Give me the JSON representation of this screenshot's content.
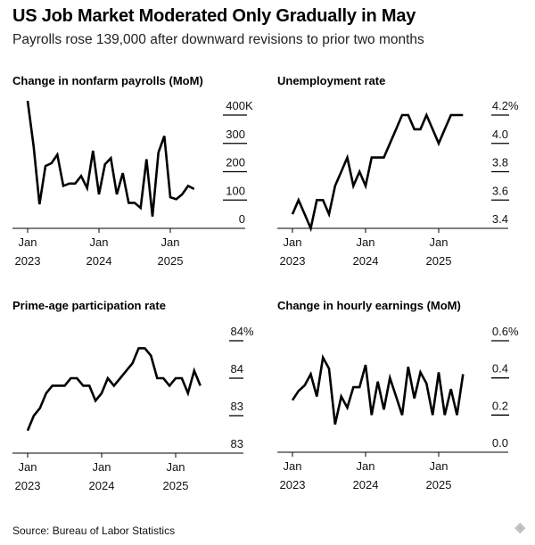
{
  "header": {
    "title": "US Job Market Moderated Only Gradually in May",
    "subtitle": "Payrolls rose 139,000 after downward revisions to prior two months"
  },
  "footer": {
    "source": "Source: Bureau of Labor Statistics",
    "watermark": "金色财经"
  },
  "chart_data": [
    {
      "type": "line",
      "title": "Change in nonfarm payrolls (MoM)",
      "x_start": "Jan 2023",
      "x_end": "May 2025",
      "x_ticks": [
        {
          "month": "Jan",
          "year": "2023"
        },
        {
          "month": "Jan",
          "year": "2024"
        },
        {
          "month": "Jan",
          "year": "2025"
        }
      ],
      "y_ticks": [
        "400K",
        "300",
        "200",
        "100",
        "0"
      ],
      "y_tick_values": [
        400,
        300,
        200,
        100,
        0
      ],
      "ylim": [
        0,
        400
      ],
      "values": [
        450,
        290,
        85,
        220,
        230,
        260,
        150,
        158,
        158,
        185,
        142,
        274,
        120,
        226,
        248,
        120,
        195,
        90,
        90,
        72,
        244,
        42,
        268,
        326,
        110,
        103,
        120,
        150,
        139
      ],
      "line_color": "#000000"
    },
    {
      "type": "line",
      "title": "Unemployment rate",
      "x_start": "Jan 2023",
      "x_end": "May 2025",
      "x_ticks": [
        {
          "month": "Jan",
          "year": "2023"
        },
        {
          "month": "Jan",
          "year": "2024"
        },
        {
          "month": "Jan",
          "year": "2025"
        }
      ],
      "y_ticks": [
        "4.2%",
        "4.0",
        "3.8",
        "3.6",
        "3.4"
      ],
      "y_tick_values": [
        4.2,
        4.0,
        3.8,
        3.6,
        3.4
      ],
      "ylim": [
        3.4,
        4.2
      ],
      "values": [
        3.5,
        3.6,
        3.5,
        3.4,
        3.6,
        3.6,
        3.5,
        3.7,
        3.8,
        3.9,
        3.7,
        3.8,
        3.7,
        3.9,
        3.9,
        3.9,
        4.0,
        4.1,
        4.2,
        4.2,
        4.1,
        4.1,
        4.2,
        4.1,
        4.0,
        4.1,
        4.2,
        4.2,
        4.2
      ],
      "line_color": "#000000"
    },
    {
      "type": "line",
      "title": "Prime-age participation rate",
      "x_start": "Jan 2023",
      "x_end": "May 2025",
      "x_ticks": [
        {
          "month": "Jan",
          "year": "2023"
        },
        {
          "month": "Jan",
          "year": "2024"
        },
        {
          "month": "Jan",
          "year": "2025"
        }
      ],
      "y_ticks": [
        "84%",
        "84",
        "83",
        "83"
      ],
      "y_tick_values": [
        84.0,
        83.5,
        83.0,
        82.5
      ],
      "ylim": [
        82.5,
        84.0
      ],
      "values": [
        82.8,
        83.0,
        83.1,
        83.3,
        83.4,
        83.4,
        83.4,
        83.5,
        83.5,
        83.4,
        83.4,
        83.2,
        83.3,
        83.5,
        83.4,
        83.5,
        83.6,
        83.7,
        83.9,
        83.9,
        83.8,
        83.5,
        83.5,
        83.4,
        83.5,
        83.5,
        83.3,
        83.6,
        83.4
      ],
      "line_color": "#000000"
    },
    {
      "type": "line",
      "title": "Change in hourly earnings (MoM)",
      "x_start": "Jan 2023",
      "x_end": "May 2025",
      "x_ticks": [
        {
          "month": "Jan",
          "year": "2023"
        },
        {
          "month": "Jan",
          "year": "2024"
        },
        {
          "month": "Jan",
          "year": "2025"
        }
      ],
      "y_ticks": [
        "0.6%",
        "0.4",
        "0.2",
        "0.0"
      ],
      "y_tick_values": [
        0.6,
        0.4,
        0.2,
        0.0
      ],
      "ylim": [
        0.0,
        0.6
      ],
      "values": [
        0.28,
        0.33,
        0.36,
        0.42,
        0.3,
        0.51,
        0.45,
        0.15,
        0.3,
        0.24,
        0.35,
        0.35,
        0.47,
        0.2,
        0.38,
        0.23,
        0.4,
        0.3,
        0.2,
        0.46,
        0.29,
        0.43,
        0.37,
        0.2,
        0.43,
        0.2,
        0.34,
        0.2,
        0.42
      ],
      "line_color": "#000000"
    }
  ]
}
